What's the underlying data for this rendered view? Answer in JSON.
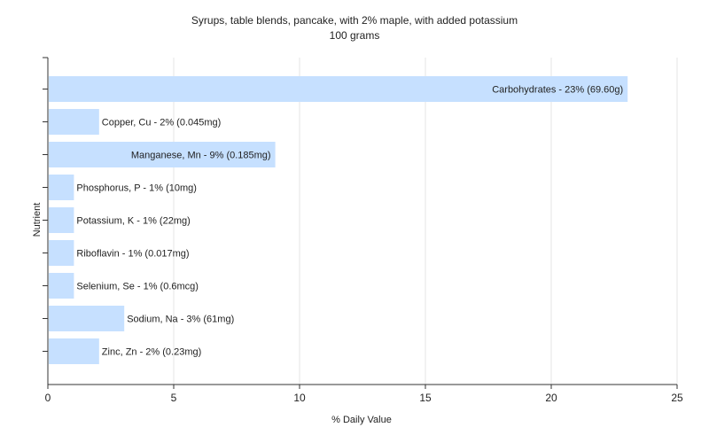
{
  "chart_data": {
    "type": "bar",
    "orientation": "horizontal",
    "title": "Syrups, table blends, pancake, with 2% maple, with added potassium",
    "subtitle": "100 grams",
    "xlabel": "% Daily Value",
    "ylabel": "Nutrient",
    "xlim": [
      0,
      25
    ],
    "xticks": [
      0,
      5,
      10,
      15,
      20,
      25
    ],
    "grid": true,
    "legend": "none",
    "bar_color": "#c6e0ff",
    "categories": [
      "Carbohydrates",
      "Copper, Cu",
      "Manganese, Mn",
      "Phosphorus, P",
      "Potassium, K",
      "Riboflavin",
      "Selenium, Se",
      "Sodium, Na",
      "Zinc, Zn"
    ],
    "values": [
      23,
      2,
      9,
      1,
      1,
      1,
      1,
      3,
      2
    ],
    "labels": [
      "Carbohydrates - 23% (69.60g)",
      "Copper, Cu - 2% (0.045mg)",
      "Manganese, Mn - 9% (0.185mg)",
      "Phosphorus, P - 1% (10mg)",
      "Potassium, K - 1% (22mg)",
      "Riboflavin - 1% (0.017mg)",
      "Selenium, Se - 1% (0.6mcg)",
      "Sodium, Na - 3% (61mg)",
      "Zinc, Zn - 2% (0.23mg)"
    ]
  }
}
